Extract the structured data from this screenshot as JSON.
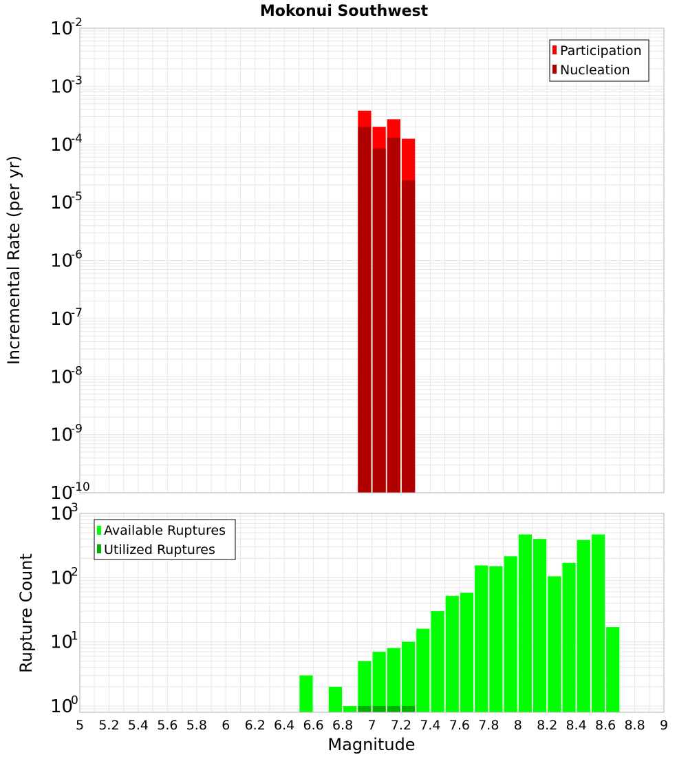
{
  "chart_data": [
    {
      "type": "bar",
      "title": "Mokonui Southwest",
      "xlabel": "",
      "ylabel": "Incremental Rate (per yr)",
      "xlim": [
        5,
        9
      ],
      "ylim": [
        1e-10,
        0.01
      ],
      "yscale": "log",
      "ytick_exponents": [
        "-2",
        "-3",
        "-4",
        "-5",
        "-6",
        "-7",
        "-8",
        "-9",
        "-10"
      ],
      "grid": true,
      "legend_position": "top-right",
      "bin_width": 0.1,
      "series": [
        {
          "name": "Participation",
          "color": "#ff0000",
          "x": [
            6.95,
            7.05,
            7.15,
            7.25
          ],
          "values": [
            0.00038,
            0.0002,
            0.00027,
            0.000125
          ]
        },
        {
          "name": "Nucleation",
          "color": "#b00000",
          "x": [
            6.95,
            7.05,
            7.15,
            7.25
          ],
          "values": [
            0.0002,
            8.5e-05,
            0.00013,
            2.4e-05
          ]
        }
      ]
    },
    {
      "type": "bar",
      "title": "",
      "xlabel": "Magnitude",
      "ylabel": "Rupture Count",
      "xlim": [
        5,
        9
      ],
      "ylim": [
        0.8,
        1000
      ],
      "yscale": "log",
      "ytick_exponents": [
        "3",
        "2",
        "1",
        "0"
      ],
      "xticks": [
        "5",
        "5.2",
        "5.4",
        "5.6",
        "5.8",
        "6",
        "6.2",
        "6.4",
        "6.6",
        "6.8",
        "7",
        "7.2",
        "7.4",
        "7.6",
        "7.8",
        "8",
        "8.2",
        "8.4",
        "8.6",
        "8.8",
        "9"
      ],
      "grid": true,
      "legend_position": "top-left",
      "bin_width": 0.1,
      "series": [
        {
          "name": "Available Ruptures",
          "color": "#00ff00",
          "x": [
            6.55,
            6.75,
            6.85,
            6.95,
            7.05,
            7.15,
            7.25,
            7.35,
            7.45,
            7.55,
            7.65,
            7.75,
            7.85,
            7.95,
            8.05,
            8.15,
            8.25,
            8.35,
            8.45,
            8.55,
            8.65
          ],
          "values": [
            3,
            2,
            1,
            5,
            7,
            8,
            10,
            16,
            30,
            52,
            58,
            155,
            150,
            215,
            470,
            400,
            105,
            170,
            385,
            470,
            17
          ]
        },
        {
          "name": "Utilized Ruptures",
          "color": "#00b000",
          "x": [
            6.95,
            7.05,
            7.15,
            7.25
          ],
          "values": [
            1,
            1,
            1,
            1
          ]
        }
      ]
    }
  ]
}
